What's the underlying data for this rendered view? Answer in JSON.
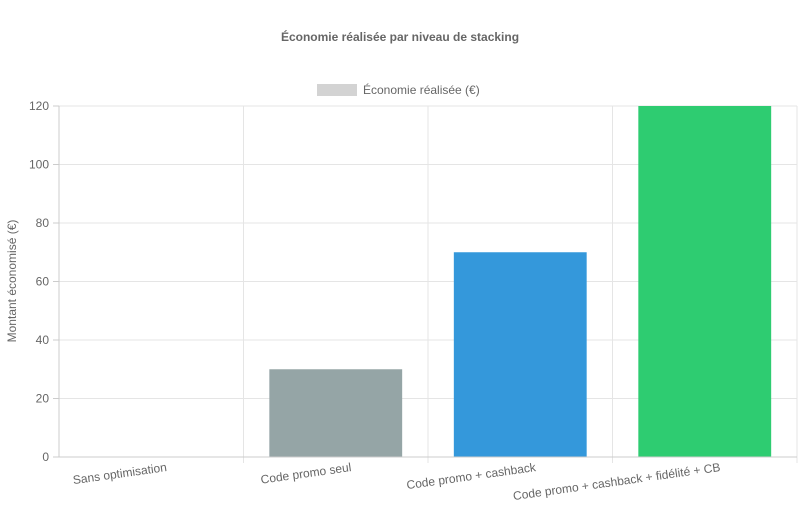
{
  "chart_data": {
    "type": "bar",
    "title": "Économie réalisée par niveau de stacking",
    "legend": {
      "position": "top",
      "entries": [
        {
          "label": "Économie réalisée (€)",
          "color": "#d3d3d3"
        }
      ]
    },
    "ylabel": "Montant économisé (€)",
    "xlabel": "",
    "ylim": [
      0,
      120
    ],
    "yticks": [
      "0",
      "20",
      "40",
      "60",
      "80",
      "100",
      "120"
    ],
    "grid": true,
    "categories": [
      "Sans optimisation",
      "Code promo seul",
      "Code promo + cashback",
      "Code promo + cashback + fidélité + CB"
    ],
    "series": [
      {
        "name": "Économie réalisée (€)",
        "values": [
          0,
          30,
          70,
          120
        ],
        "colors": [
          "#e74c3c",
          "#95a5a6",
          "#3498db",
          "#2ecc71"
        ]
      }
    ]
  }
}
